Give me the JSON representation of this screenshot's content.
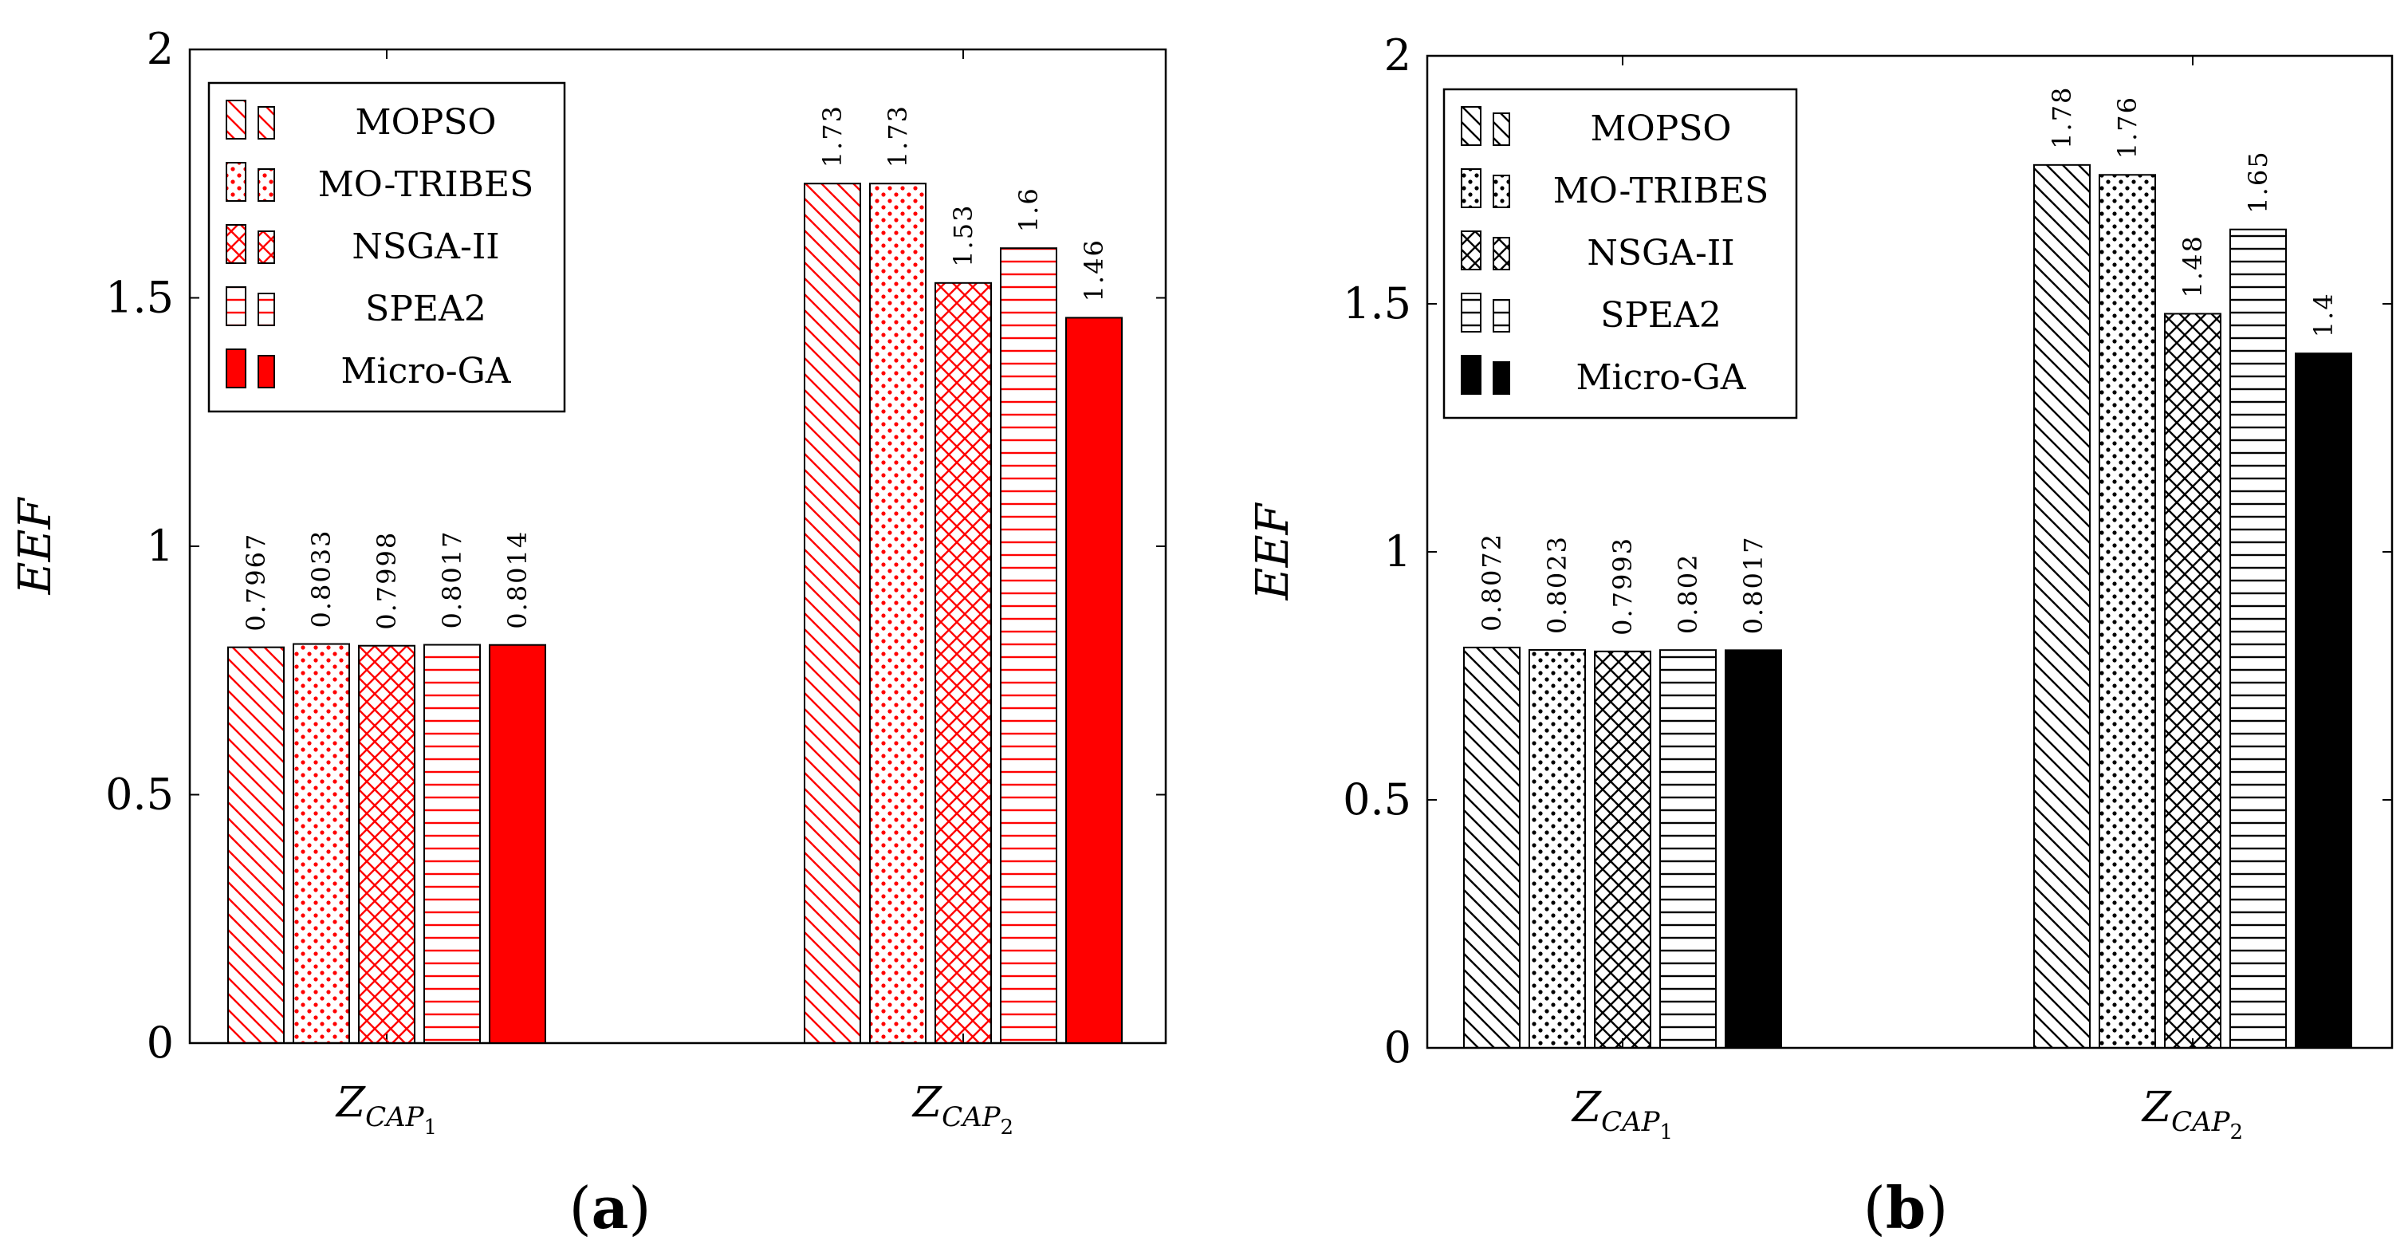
{
  "chart_data": [
    {
      "type": "bar",
      "panel": "a",
      "caption": {
        "open": "(",
        "letter": "a",
        "close": ")"
      },
      "ylabel": "EEF",
      "ylim": [
        0,
        2
      ],
      "yticks": [
        "0",
        "0.5",
        "1",
        "1.5",
        "2"
      ],
      "ytick_values": [
        0,
        0.5,
        1,
        1.5,
        2
      ],
      "categories": [
        {
          "base": "Z",
          "sub": "CAP",
          "subsub": "1"
        },
        {
          "base": "Z",
          "sub": "CAP",
          "subsub": "2"
        }
      ],
      "color": "#ff0000",
      "legend_position": "top-left",
      "series": [
        {
          "name": "MOPSO",
          "pattern": "diag",
          "values": [
            0.7967,
            1.73
          ],
          "labels": [
            "0.7967",
            "1.73"
          ]
        },
        {
          "name": "MO-TRIBES",
          "pattern": "dots",
          "values": [
            0.8033,
            1.73
          ],
          "labels": [
            "0.8033",
            "1.73"
          ]
        },
        {
          "name": "NSGA-II",
          "pattern": "cross",
          "values": [
            0.7998,
            1.53
          ],
          "labels": [
            "0.7998",
            "1.53"
          ]
        },
        {
          "name": "SPEA2",
          "pattern": "hlines",
          "values": [
            0.8017,
            1.6
          ],
          "labels": [
            "0.8017",
            "1.6"
          ]
        },
        {
          "name": "Micro-GA",
          "pattern": "solid",
          "values": [
            0.8014,
            1.46
          ],
          "labels": [
            "0.8014",
            "1.46"
          ]
        }
      ]
    },
    {
      "type": "bar",
      "panel": "b",
      "caption": {
        "open": "(",
        "letter": "b",
        "close": ")"
      },
      "ylabel": "EEF",
      "ylim": [
        0,
        2
      ],
      "yticks": [
        "0",
        "0.5",
        "1",
        "1.5",
        "2"
      ],
      "ytick_values": [
        0,
        0.5,
        1,
        1.5,
        2
      ],
      "categories": [
        {
          "base": "Z",
          "sub": "CAP",
          "subsub": "1"
        },
        {
          "base": "Z",
          "sub": "CAP",
          "subsub": "2"
        }
      ],
      "color": "#000000",
      "legend_position": "top-left",
      "series": [
        {
          "name": "MOPSO",
          "pattern": "diag",
          "values": [
            0.8072,
            1.78
          ],
          "labels": [
            "0.8072",
            "1.78"
          ]
        },
        {
          "name": "MO-TRIBES",
          "pattern": "dots",
          "values": [
            0.8023,
            1.76
          ],
          "labels": [
            "0.8023",
            "1.76"
          ]
        },
        {
          "name": "NSGA-II",
          "pattern": "cross",
          "values": [
            0.7993,
            1.48
          ],
          "labels": [
            "0.7993",
            "1.48"
          ]
        },
        {
          "name": "SPEA2",
          "pattern": "hlines",
          "values": [
            0.802,
            1.65
          ],
          "labels": [
            "0.802",
            "1.65"
          ]
        },
        {
          "name": "Micro-GA",
          "pattern": "solid",
          "values": [
            0.8017,
            1.4
          ],
          "labels": [
            "0.8017",
            "1.4"
          ]
        }
      ]
    }
  ]
}
